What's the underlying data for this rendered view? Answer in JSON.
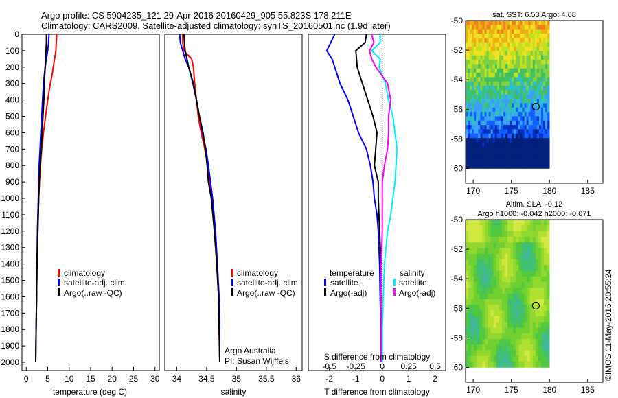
{
  "header": {
    "line1": "Argo profile: CS 5904235_121 29-Apr-2016 20160429_905 55.823S 178.211E",
    "line2": "Climatology: CARS2009. Satellite-adjusted climatology: synTS_20160501.nc (1.9d later)"
  },
  "colors": {
    "clim": "#ff0000",
    "sat": "#0000ff",
    "argo": "#000000",
    "sat_s": "#00eeff",
    "argo_s": "#ff00ff"
  },
  "chart_data": [
    {
      "type": "line",
      "id": "temperature",
      "xlabel": "temperature (deg C)",
      "ylabel": "",
      "xlim": [
        -1,
        31
      ],
      "ylim": [
        2050,
        0
      ],
      "xticks": [
        "0",
        "5",
        "10",
        "15",
        "20",
        "25",
        "30"
      ],
      "yticks": [
        "0",
        "100",
        "200",
        "300",
        "400",
        "500",
        "600",
        "700",
        "800",
        "900",
        "1000",
        "1100",
        "1200",
        "1300",
        "1400",
        "1500",
        "1600",
        "1700",
        "1800",
        "1900",
        "2000"
      ],
      "legend": [
        "climatology",
        "satellite-adj. clim.",
        "Argo(..raw -QC)"
      ],
      "series": [
        {
          "name": "climatology",
          "depth": [
            0,
            50,
            100,
            150,
            200,
            250,
            300,
            400,
            500,
            600,
            700,
            800,
            900,
            1000,
            1200,
            1400,
            1600,
            1800,
            2000
          ],
          "values": [
            7.1,
            7.0,
            6.9,
            6.6,
            6.3,
            6.0,
            5.6,
            5.0,
            4.5,
            4.0,
            3.6,
            3.3,
            3.1,
            2.9,
            2.7,
            2.5,
            2.4,
            2.3,
            2.2
          ]
        },
        {
          "name": "satellite-adj. clim.",
          "depth": [
            0,
            50,
            100,
            150,
            200,
            250,
            300,
            400,
            500,
            600,
            700,
            800,
            900,
            1000,
            1200,
            1400,
            1600,
            1800,
            2000
          ],
          "values": [
            5.3,
            5.2,
            5.0,
            4.7,
            4.4,
            4.2,
            4.0,
            3.8,
            3.6,
            3.4,
            3.2,
            3.0,
            2.9,
            2.8,
            2.6,
            2.5,
            2.4,
            2.3,
            2.2
          ]
        },
        {
          "name": "Argo(..raw -QC)",
          "depth": [
            0,
            50,
            100,
            200,
            300,
            400,
            500,
            600,
            700,
            800,
            900,
            1000,
            1200,
            1400,
            1600,
            1800,
            2000
          ],
          "values": [
            4.7,
            4.7,
            4.6,
            4.4,
            4.2,
            4.1,
            3.9,
            3.7,
            3.5,
            3.2,
            3.0,
            2.9,
            2.7,
            2.5,
            2.4,
            2.3,
            2.2
          ]
        }
      ]
    },
    {
      "type": "line",
      "id": "salinity",
      "xlabel": "salinity",
      "ylabel": "",
      "xlim": [
        33.8,
        36.1
      ],
      "ylim": [
        2050,
        0
      ],
      "xticks": [
        "34",
        "34.5",
        "35",
        "35.5",
        "36"
      ],
      "legend": [
        "climatology",
        "satellite-adj. clim.",
        "Argo(..raw -QC)"
      ],
      "annotation": [
        "Argo Australia",
        "PI: Susan Wijffels"
      ],
      "series": [
        {
          "name": "climatology",
          "depth": [
            0,
            50,
            100,
            150,
            200,
            300,
            400,
            500,
            600,
            700,
            800,
            1000,
            1200,
            1400,
            1600,
            1800,
            2000
          ],
          "values": [
            34.1,
            34.1,
            34.12,
            34.25,
            34.28,
            34.3,
            34.33,
            34.36,
            34.41,
            34.47,
            34.52,
            34.58,
            34.63,
            34.67,
            34.7,
            34.71,
            34.72
          ]
        },
        {
          "name": "satellite-adj. clim.",
          "depth": [
            0,
            50,
            100,
            150,
            200,
            300,
            400,
            500,
            600,
            700,
            800,
            1000,
            1200,
            1400,
            1600,
            1800,
            2000
          ],
          "values": [
            34.05,
            34.06,
            34.1,
            34.14,
            34.2,
            34.27,
            34.33,
            34.38,
            34.43,
            34.49,
            34.53,
            34.6,
            34.65,
            34.68,
            34.71,
            34.72,
            34.72
          ]
        },
        {
          "name": "Argo(..raw -QC)",
          "depth": [
            0,
            50,
            100,
            200,
            300,
            400,
            500,
            600,
            700,
            800,
            900,
            1000,
            1200,
            1400,
            1600,
            1800,
            2000
          ],
          "values": [
            34.12,
            34.13,
            34.14,
            34.2,
            34.28,
            34.33,
            34.38,
            34.44,
            34.48,
            34.51,
            34.53,
            34.58,
            34.63,
            34.67,
            34.7,
            34.71,
            34.72
          ]
        }
      ]
    },
    {
      "type": "line",
      "id": "difference",
      "xlabel": "T difference from climatology",
      "xlabel_top": "S difference from climatology",
      "xlim": [
        -2.8,
        2.4
      ],
      "ylim": [
        2050,
        0
      ],
      "xticks": [
        "-2",
        "-1",
        "0",
        "1",
        "2"
      ],
      "xticks_top": [
        "-0.5",
        "-0.25",
        "0",
        "0.25",
        "0.5"
      ],
      "legend_temperature": [
        "temperature",
        "satellite",
        "Argo(-adj)"
      ],
      "legend_salinity": [
        "salinity",
        "satellite",
        "Argo(-adj)"
      ],
      "series": [
        {
          "name": "satellite",
          "depth": [
            0,
            100,
            150,
            200,
            300,
            400,
            500,
            600,
            700,
            800,
            900,
            1000,
            1100,
            1200,
            1400,
            1600,
            1800,
            2000
          ],
          "values": [
            -1.8,
            -2.1,
            -1.9,
            -1.8,
            -1.6,
            -1.3,
            -1.1,
            -0.9,
            -0.6,
            -0.45,
            -0.35,
            -0.3,
            -0.2,
            -0.15,
            -0.1,
            -0.08,
            -0.05,
            -0.05
          ]
        },
        {
          "name": "Argo(-adj)",
          "depth": [
            0,
            50,
            100,
            200,
            300,
            400,
            500,
            600,
            700,
            800,
            900,
            1000,
            1200,
            1400,
            1600,
            1800,
            2000
          ],
          "values": [
            -0.6,
            -0.65,
            -1.0,
            -0.95,
            -0.75,
            -0.55,
            -0.35,
            -0.2,
            -0.25,
            -0.3,
            -0.15,
            -0.15,
            -0.1,
            -0.05,
            -0.05,
            -0.05,
            -0.05
          ]
        },
        {
          "name": "satellite (S)",
          "depth": [
            0,
            50,
            100,
            150,
            200,
            300,
            400,
            500,
            600,
            700,
            800,
            900,
            1000,
            1100,
            1200,
            1400,
            1600,
            1800,
            2000
          ],
          "values": [
            -0.02,
            -0.02,
            -0.1,
            -0.02,
            -0.03,
            0.03,
            0.06,
            0.1,
            0.12,
            0.14,
            0.13,
            0.12,
            0.1,
            0.08,
            0.05,
            0.02,
            0.01,
            0.0,
            0.0
          ]
        },
        {
          "name": "Argo(-adj) (S)",
          "depth": [
            0,
            50,
            100,
            150,
            200,
            300,
            400,
            500,
            600,
            700,
            800,
            900,
            1000,
            1200,
            1400,
            1600,
            1800,
            2000
          ],
          "values": [
            -0.1,
            -0.08,
            -0.12,
            -0.1,
            -0.06,
            0.05,
            0.08,
            0.06,
            0.06,
            0.05,
            0.02,
            0.0,
            0.0,
            0.0,
            -0.01,
            -0.01,
            -0.01,
            -0.01
          ]
        }
      ]
    },
    {
      "type": "heatmap",
      "id": "sst",
      "title": "sat. SST: 6.53 Argo: 4.68",
      "xlim": [
        169,
        187
      ],
      "ylim": [
        -61,
        -50
      ],
      "xticks": [
        "170",
        "175",
        "180",
        "185"
      ],
      "yticks": [
        "-50",
        "-52",
        "-54",
        "-56",
        "-58",
        "-60"
      ],
      "marker": {
        "lon": 178.211,
        "lat": -55.823
      }
    },
    {
      "type": "heatmap",
      "id": "sla",
      "title": "Altim. SLA: -0.12",
      "subtitle": "Argo h1000: -0.042 h2000: -0.071",
      "xlim": [
        169,
        187
      ],
      "ylim": [
        -61,
        -50
      ],
      "xticks": [
        "170",
        "175",
        "180",
        "185"
      ],
      "yticks": [
        "-50",
        "-52",
        "-54",
        "-56",
        "-58",
        "-60"
      ],
      "marker": {
        "lon": 178.211,
        "lat": -55.823
      }
    }
  ],
  "credit": "©IMOS 11-May-2016 20:55:24"
}
